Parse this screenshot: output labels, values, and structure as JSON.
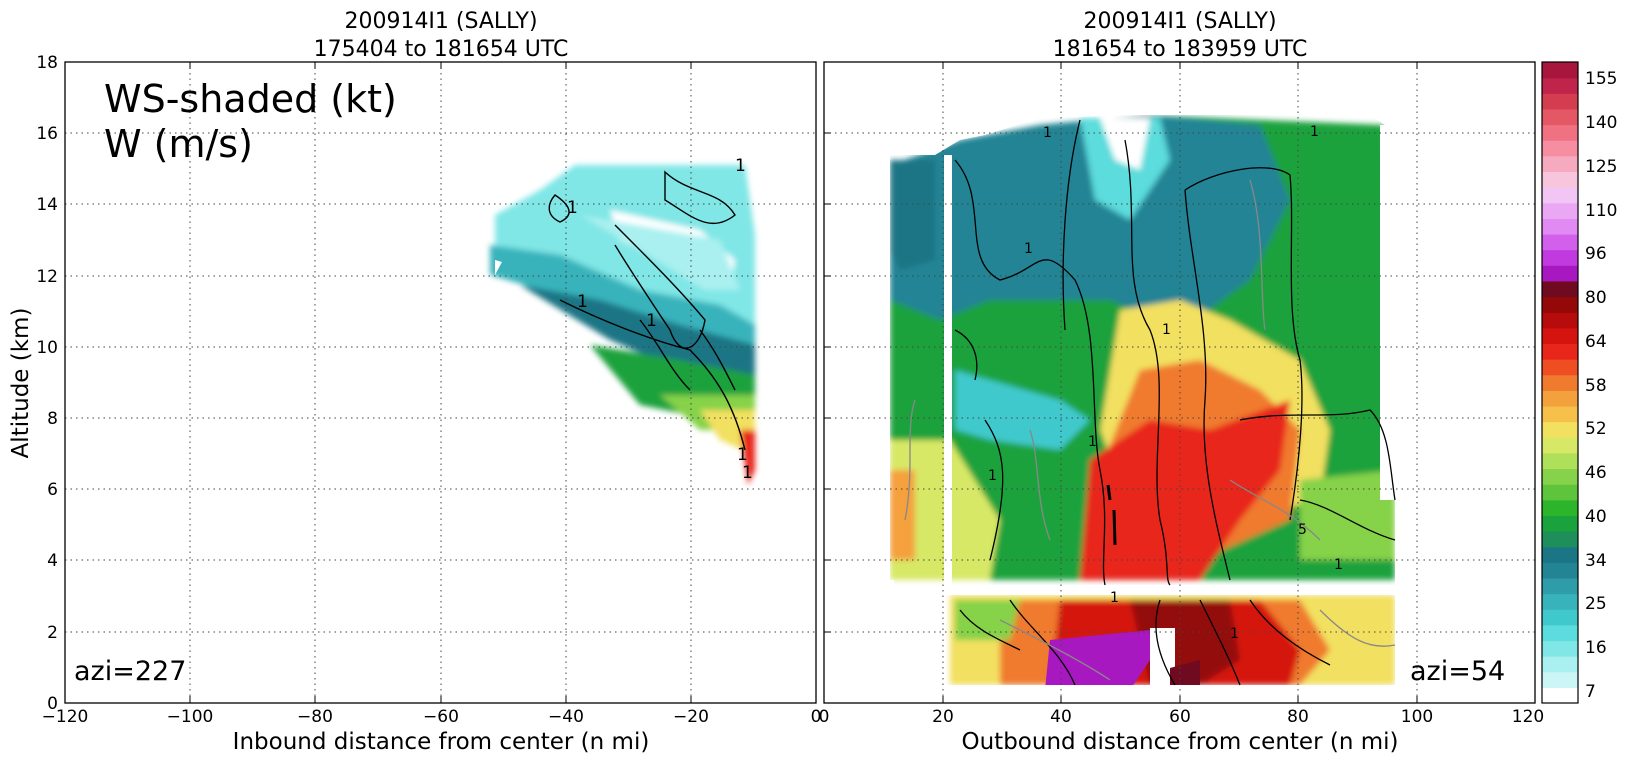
{
  "chart_data": [
    {
      "type": "heatmap",
      "panel": "inbound",
      "title_line1": "200914I1 (SALLY)",
      "title_line2": "175404 to 181654 UTC",
      "xlabel": "Inbound distance from center (n mi)",
      "ylabel": "Altitude (km)",
      "xlim": [
        -120,
        0
      ],
      "ylim": [
        0,
        18
      ],
      "x_ticks": [
        "−120",
        "−100",
        "−80",
        "−60",
        "−40",
        "−20",
        "0"
      ],
      "y_ticks": [
        "0",
        "2",
        "4",
        "6",
        "8",
        "10",
        "12",
        "14",
        "16",
        "18"
      ],
      "grid": true,
      "annotation_line1": "WS-shaded (kt)",
      "annotation_line2": "W (m/s)",
      "azi_label": "azi=227",
      "data_extent_x": [
        -55,
        -10
      ],
      "data_extent_y": [
        6,
        15.2
      ],
      "wind_speed_kt_approx": [
        {
          "altitude_km": 14.5,
          "range_kt": [
            7,
            22
          ]
        },
        {
          "altitude_km": 12,
          "range_kt": [
            16,
            28
          ]
        },
        {
          "altitude_km": 9,
          "range_kt": [
            25,
            34
          ]
        },
        {
          "altitude_km": 7,
          "range_kt": [
            34,
            55
          ]
        }
      ]
    },
    {
      "type": "heatmap",
      "panel": "outbound",
      "title_line1": "200914I1 (SALLY)",
      "title_line2": "181654 to 183959 UTC",
      "xlabel": "Outbound distance from center (n mi)",
      "xlim": [
        0,
        120
      ],
      "ylim": [
        0,
        18
      ],
      "x_ticks": [
        "0",
        "20",
        "40",
        "60",
        "80",
        "100",
        "120"
      ],
      "grid": true,
      "azi_label": "azi=54",
      "data_extent_x": [
        11,
        96
      ],
      "data_extent_y": [
        0.3,
        16.5
      ],
      "wind_speed_kt_approx": [
        {
          "altitude_km": 15,
          "range_kt": [
            7,
            34
          ]
        },
        {
          "altitude_km": 9,
          "range_kt": [
            22,
            55
          ]
        },
        {
          "altitude_km": 5,
          "range_kt": [
            34,
            61
          ]
        },
        {
          "altitude_km": 1.5,
          "range_kt": [
            40,
            80
          ]
        }
      ]
    }
  ],
  "colorbar": {
    "label": "WS-shaded (kt)",
    "tick_labels": [
      "155",
      "140",
      "125",
      "110",
      "96",
      "80",
      "64",
      "58",
      "52",
      "46",
      "40",
      "34",
      "25",
      "16",
      "7"
    ],
    "colors": [
      "#ffffff",
      "#ccf6f6",
      "#aaf0f0",
      "#80e6e6",
      "#5cdcdc",
      "#40c9cc",
      "#38b3bb",
      "#2f9ca9",
      "#238494",
      "#1a7584",
      "#1e8f5a",
      "#1aa23c",
      "#2cb42a",
      "#5ec43c",
      "#86d24a",
      "#b0df5a",
      "#d7e866",
      "#f2e060",
      "#f6c04a",
      "#f4a03c",
      "#f07a2e",
      "#ee4e22",
      "#e8261a",
      "#d51410",
      "#b60c0c",
      "#940808",
      "#700a20",
      "#a818c0",
      "#c03ae0",
      "#d260ec",
      "#e08af2",
      "#eaa8f4",
      "#f2c6f4",
      "#f8c6dc",
      "#f6aac0",
      "#f48ea0",
      "#f07282",
      "#e45866",
      "#d43c50",
      "#c0244a",
      "#a8163e"
    ]
  }
}
